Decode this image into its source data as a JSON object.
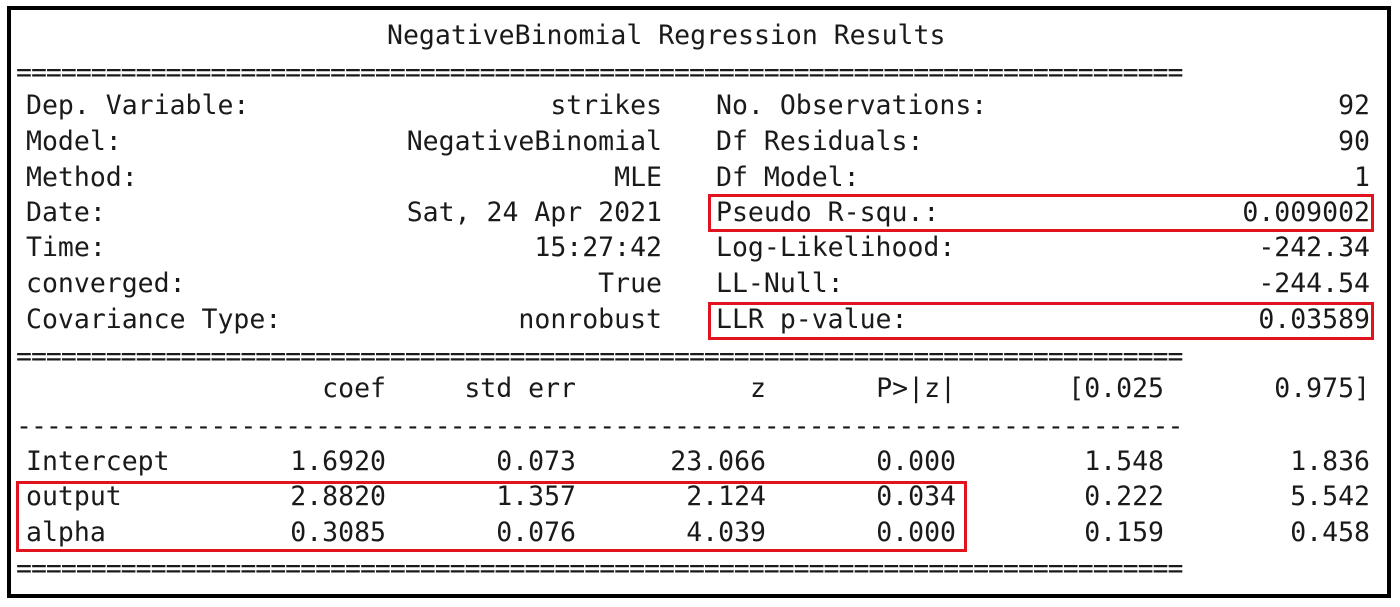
{
  "title": "NegativeBinomial Regression Results",
  "separators": {
    "double": "==============================================================================",
    "single": "------------------------------------------------------------------------------"
  },
  "summary_left": [
    {
      "label": "Dep. Variable:",
      "value": "strikes"
    },
    {
      "label": "Model:",
      "value": "NegativeBinomial"
    },
    {
      "label": "Method:",
      "value": "MLE"
    },
    {
      "label": "Date:",
      "value": "Sat, 24 Apr 2021"
    },
    {
      "label": "Time:",
      "value": "15:27:42"
    },
    {
      "label": "converged:",
      "value": "True"
    },
    {
      "label": "Covariance Type:",
      "value": "nonrobust"
    }
  ],
  "summary_right": [
    {
      "label": "No. Observations:",
      "value": "92"
    },
    {
      "label": "Df Residuals:",
      "value": "90"
    },
    {
      "label": "Df Model:",
      "value": "1"
    },
    {
      "label": "Pseudo R-squ.:",
      "value": "0.009002"
    },
    {
      "label": "Log-Likelihood:",
      "value": "-242.34"
    },
    {
      "label": "LL-Null:",
      "value": "-244.54"
    },
    {
      "label": "LLR p-value:",
      "value": "0.03589"
    }
  ],
  "coef_table": {
    "headers": [
      "coef",
      "std err",
      "z",
      "P>|z|",
      "[0.025",
      "0.975]"
    ],
    "rows": [
      {
        "name": "Intercept",
        "cells": [
          "1.6920",
          "0.073",
          "23.066",
          "0.000",
          "1.548",
          "1.836"
        ]
      },
      {
        "name": "output",
        "cells": [
          "2.8820",
          "1.357",
          "2.124",
          "0.034",
          "0.222",
          "5.542"
        ]
      },
      {
        "name": "alpha",
        "cells": [
          "0.3085",
          "0.076",
          "4.039",
          "0.000",
          "0.159",
          "0.458"
        ]
      }
    ]
  },
  "highlight_color": "#e0141e"
}
